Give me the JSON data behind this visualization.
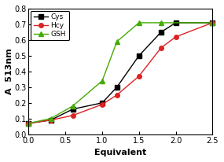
{
  "Cys_x": [
    0.0,
    0.3,
    0.6,
    1.0,
    1.2,
    1.5,
    1.8,
    2.0,
    2.5
  ],
  "Cys_y": [
    0.07,
    0.09,
    0.16,
    0.2,
    0.3,
    0.5,
    0.65,
    0.71,
    0.71
  ],
  "Hcy_x": [
    0.0,
    0.3,
    0.6,
    1.0,
    1.2,
    1.5,
    1.8,
    2.0,
    2.5
  ],
  "Hcy_y": [
    0.07,
    0.09,
    0.12,
    0.19,
    0.25,
    0.37,
    0.55,
    0.62,
    0.71
  ],
  "GSH_x": [
    0.0,
    0.3,
    0.6,
    1.0,
    1.2,
    1.5,
    1.8,
    2.5
  ],
  "GSH_y": [
    0.07,
    0.1,
    0.18,
    0.34,
    0.59,
    0.71,
    0.71,
    0.71
  ],
  "Cys_color": "#000000",
  "Hcy_color": "#dd2222",
  "GSH_color": "#44aa00",
  "Cys_marker": "s",
  "Hcy_marker": "o",
  "GSH_marker": "^",
  "xlabel": "Equivalent",
  "ylabel": "A  513nm",
  "xlim": [
    0.0,
    2.5
  ],
  "ylim": [
    0.0,
    0.8
  ],
  "xticks": [
    0.0,
    0.5,
    1.0,
    1.5,
    2.0,
    2.5
  ],
  "yticks": [
    0.0,
    0.1,
    0.2,
    0.3,
    0.4,
    0.5,
    0.6,
    0.7,
    0.8
  ],
  "legend_labels": [
    "Cys",
    "Hcy",
    "GSH"
  ],
  "linewidth": 1.0,
  "markersize": 4
}
